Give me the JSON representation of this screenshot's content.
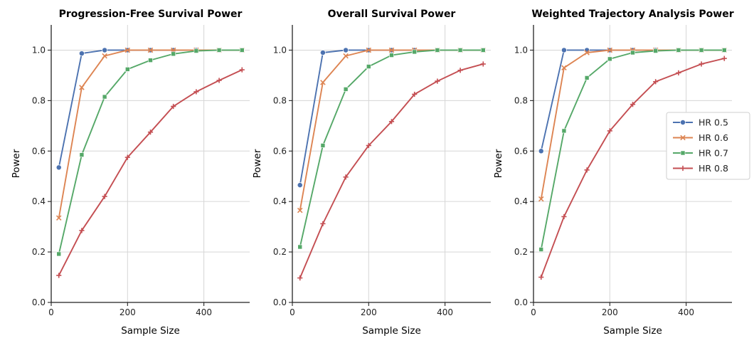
{
  "chart_data": [
    {
      "type": "line",
      "title": "Progression-Free Survival Power",
      "xlabel": "Sample Size",
      "ylabel": "Power",
      "xlim": [
        0,
        520
      ],
      "ylim": [
        0,
        1.1
      ],
      "xticks": [
        0,
        200,
        400
      ],
      "yticks": [
        0.0,
        0.2,
        0.4,
        0.6,
        0.8,
        1.0
      ],
      "grid": true,
      "x": [
        20,
        80,
        140,
        200,
        260,
        320,
        380,
        440,
        500
      ],
      "series": [
        {
          "name": "HR 0.5",
          "values": [
            0.535,
            0.987,
            1.0,
            1.0,
            1.0,
            1.0,
            1.0,
            1.0,
            1.0
          ]
        },
        {
          "name": "HR 0.6",
          "values": [
            0.335,
            0.852,
            0.977,
            1.0,
            1.0,
            1.0,
            1.0,
            1.0,
            1.0
          ]
        },
        {
          "name": "HR 0.7",
          "values": [
            0.192,
            0.585,
            0.815,
            0.924,
            0.96,
            0.985,
            0.997,
            1.0,
            1.0
          ]
        },
        {
          "name": "HR 0.8",
          "values": [
            0.107,
            0.285,
            0.42,
            0.575,
            0.675,
            0.777,
            0.835,
            0.88,
            0.922
          ]
        }
      ]
    },
    {
      "type": "line",
      "title": "Overall Survival Power",
      "xlabel": "Sample Size",
      "ylabel": "Power",
      "xlim": [
        0,
        520
      ],
      "ylim": [
        0,
        1.1
      ],
      "xticks": [
        0,
        200,
        400
      ],
      "yticks": [
        0.0,
        0.2,
        0.4,
        0.6,
        0.8,
        1.0
      ],
      "grid": true,
      "x": [
        20,
        80,
        140,
        200,
        260,
        320,
        380,
        440,
        500
      ],
      "series": [
        {
          "name": "HR 0.5",
          "values": [
            0.465,
            0.99,
            1.0,
            1.0,
            1.0,
            1.0,
            1.0,
            1.0,
            1.0
          ]
        },
        {
          "name": "HR 0.6",
          "values": [
            0.365,
            0.872,
            0.977,
            1.0,
            1.0,
            1.0,
            1.0,
            1.0,
            1.0
          ]
        },
        {
          "name": "HR 0.7",
          "values": [
            0.22,
            0.622,
            0.845,
            0.935,
            0.98,
            0.993,
            1.0,
            1.0,
            1.0
          ]
        },
        {
          "name": "HR 0.8",
          "values": [
            0.097,
            0.312,
            0.497,
            0.622,
            0.717,
            0.825,
            0.877,
            0.92,
            0.945
          ]
        }
      ]
    },
    {
      "type": "line",
      "title": "Weighted Trajectory Analysis Power",
      "xlabel": "Sample Size",
      "ylabel": "Power",
      "xlim": [
        0,
        520
      ],
      "ylim": [
        0,
        1.1
      ],
      "xticks": [
        0,
        200,
        400
      ],
      "yticks": [
        0.0,
        0.2,
        0.4,
        0.6,
        0.8,
        1.0
      ],
      "grid": true,
      "x": [
        20,
        80,
        140,
        200,
        260,
        320,
        380,
        440,
        500
      ],
      "series": [
        {
          "name": "HR 0.5",
          "values": [
            0.6,
            1.0,
            1.0,
            1.0,
            1.0,
            1.0,
            1.0,
            1.0,
            1.0
          ]
        },
        {
          "name": "HR 0.6",
          "values": [
            0.41,
            0.93,
            0.99,
            1.0,
            1.0,
            1.0,
            1.0,
            1.0,
            1.0
          ]
        },
        {
          "name": "HR 0.7",
          "values": [
            0.21,
            0.68,
            0.89,
            0.965,
            0.99,
            0.997,
            1.0,
            1.0,
            1.0
          ]
        },
        {
          "name": "HR 0.8",
          "values": [
            0.1,
            0.34,
            0.525,
            0.68,
            0.785,
            0.875,
            0.91,
            0.945,
            0.967
          ]
        }
      ]
    }
  ],
  "legend": {
    "location": "center-right of third panel",
    "items": [
      {
        "label": "HR 0.5",
        "color": "#4c72b0",
        "marker": "circle"
      },
      {
        "label": "HR 0.6",
        "color": "#dd8452",
        "marker": "x"
      },
      {
        "label": "HR 0.7",
        "color": "#55a868",
        "marker": "square"
      },
      {
        "label": "HR 0.8",
        "color": "#c44e52",
        "marker": "plus"
      }
    ]
  }
}
